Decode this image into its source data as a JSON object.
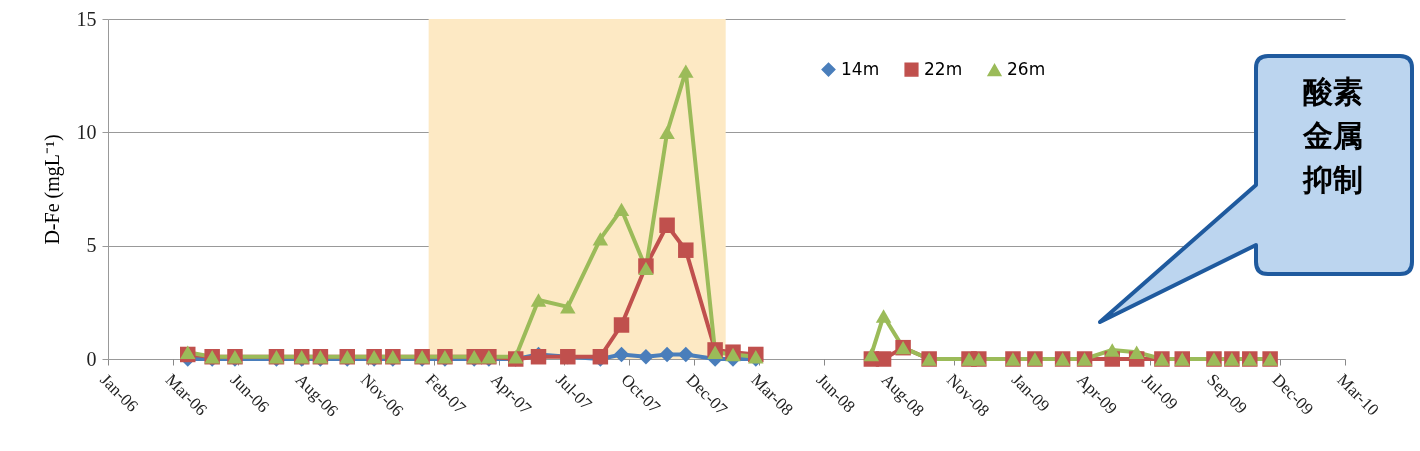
{
  "chart_data": {
    "type": "line",
    "ylabel": "D-Fe (mgL⁻¹)",
    "x": [
      "2006-04-11",
      "2006-05-11",
      "2006-06-08",
      "2006-07-29",
      "2006-08-29",
      "2006-09-21",
      "2006-10-24",
      "2006-11-26",
      "2006-12-19",
      "2007-01-24",
      "2007-02-21",
      "2007-03-29",
      "2007-04-16",
      "2007-05-19",
      "2007-06-16",
      "2007-07-22",
      "2007-08-31",
      "2007-09-26",
      "2007-10-26",
      "2007-11-21",
      "2007-12-14",
      "2008-01-19",
      "2008-02-10",
      "2008-03-09",
      "2008-05-15",
      "2008-07-29",
      "2008-08-13",
      "2008-09-06",
      "2008-10-08",
      "2008-11-26",
      "2008-12-08",
      "2009-01-19",
      "2009-02-15",
      "2009-03-21",
      "2009-04-17",
      "2009-05-21",
      "2009-06-20",
      "2009-07-21",
      "2009-08-15",
      "2009-09-23",
      "2009-10-15",
      "2009-11-06",
      "2009-12-01"
    ],
    "series": [
      {
        "name": "14m",
        "color": "#4a7ebb",
        "marker": "diamond",
        "values": [
          0,
          0,
          0,
          0,
          0,
          0,
          0,
          0,
          0,
          0,
          0,
          0,
          0,
          0,
          0.2,
          0.1,
          0,
          0.2,
          0.1,
          0.2,
          0.2,
          0,
          0,
          0,
          null,
          null,
          null,
          null,
          null,
          null,
          null,
          null,
          null,
          null,
          null,
          null,
          null,
          null,
          null,
          null,
          null,
          null,
          null
        ]
      },
      {
        "name": "22m",
        "color": "#c0504d",
        "marker": "square",
        "values": [
          0.2,
          0.1,
          0.1,
          0.1,
          0.1,
          0.1,
          0.1,
          0.1,
          0.1,
          0.1,
          0.1,
          0.1,
          0.1,
          0,
          0.1,
          0.1,
          0.1,
          1.5,
          4.1,
          5.9,
          4.8,
          0.4,
          0.3,
          0.2,
          null,
          0,
          0,
          0.5,
          0,
          0,
          0,
          0,
          0,
          0,
          0,
          0,
          0,
          0,
          0,
          0,
          0,
          0,
          0
        ]
      },
      {
        "name": "26m",
        "color": "#9bbb59",
        "marker": "triangle",
        "values": [
          0.3,
          0.1,
          0.1,
          0.1,
          0.1,
          0.1,
          0.1,
          0.1,
          0.1,
          0.1,
          0.1,
          0.1,
          0.1,
          0.1,
          2.6,
          2.3,
          5.3,
          6.6,
          4.0,
          10.0,
          12.7,
          0.3,
          0.2,
          0.1,
          null,
          0.2,
          1.9,
          0.5,
          0,
          0,
          0,
          0,
          0,
          0,
          0,
          0.4,
          0.3,
          0,
          0,
          0,
          0,
          0,
          0
        ]
      }
    ],
    "xlim": [
      "2006-01-03",
      "2010-03-03"
    ],
    "xticks": [
      {
        "value": "2006-01-03",
        "label": "Jan-06"
      },
      {
        "value": "2006-03-24",
        "label": "Mar-06"
      },
      {
        "value": "2006-06-12",
        "label": "Jun-06"
      },
      {
        "value": "2006-08-31",
        "label": "Aug-06"
      },
      {
        "value": "2006-11-19",
        "label": "Nov-06"
      },
      {
        "value": "2007-02-07",
        "label": "Feb-07"
      },
      {
        "value": "2007-04-28",
        "label": "Apr-07"
      },
      {
        "value": "2007-07-17",
        "label": "Jul-07"
      },
      {
        "value": "2007-10-05",
        "label": "Oct-07"
      },
      {
        "value": "2007-12-24",
        "label": "Dec-07"
      },
      {
        "value": "2008-03-13",
        "label": "Mar-08"
      },
      {
        "value": "2008-06-01",
        "label": "Jun-08"
      },
      {
        "value": "2008-08-20",
        "label": "Aug-08"
      },
      {
        "value": "2008-11-08",
        "label": "Nov-08"
      },
      {
        "value": "2009-01-27",
        "label": "Jan-09"
      },
      {
        "value": "2009-04-17",
        "label": "Apr-09"
      },
      {
        "value": "2009-07-06",
        "label": "Jul-09"
      },
      {
        "value": "2009-09-24",
        "label": "Sep-09"
      },
      {
        "value": "2009-12-13",
        "label": "Dec-09"
      },
      {
        "value": "2010-03-03",
        "label": "Mar-10"
      }
    ],
    "ylim": [
      0,
      15
    ],
    "yticks": [
      0,
      5,
      10,
      15
    ],
    "grid": "y",
    "legend": "top right",
    "line_style": "solid",
    "bands": [
      {
        "axis": "x",
        "from": "2007-02-01",
        "to": "2008-02-01",
        "color": "#fde9c4"
      }
    ],
    "annotations": [
      "酸素金属抑制"
    ]
  }
}
